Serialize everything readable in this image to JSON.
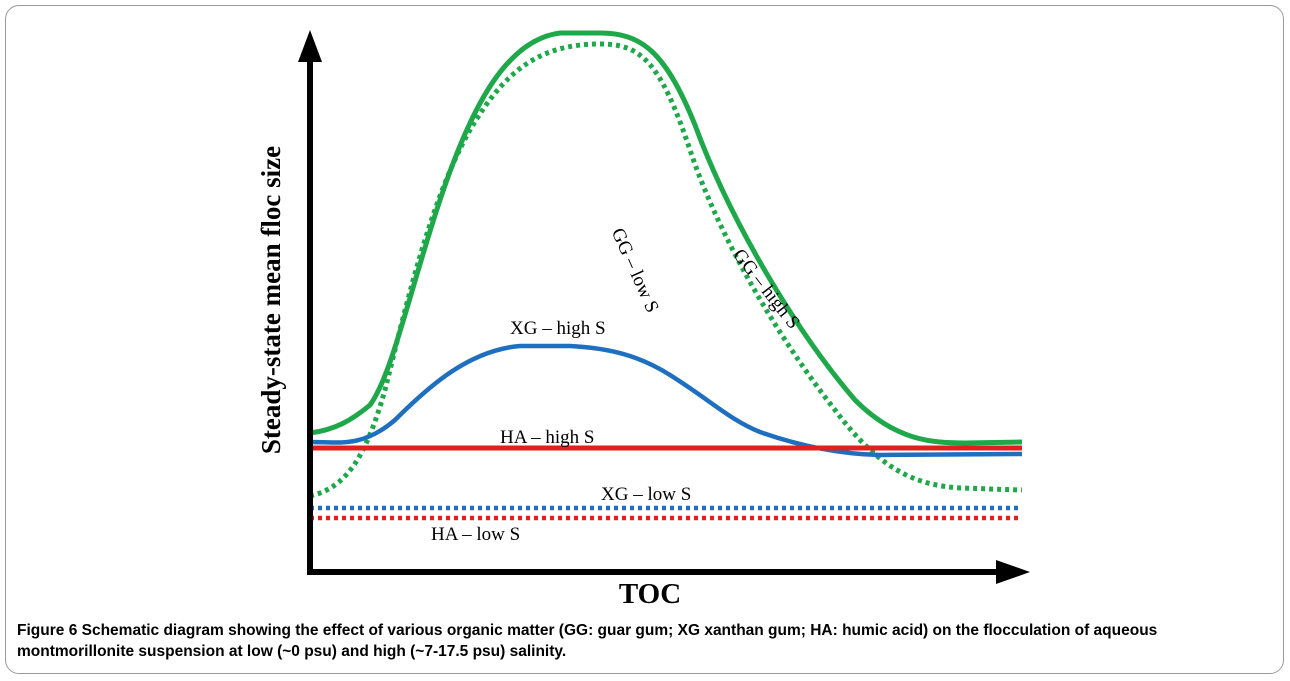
{
  "axes": {
    "y_title": "Steady-state mean floc size",
    "x_title": "TOC"
  },
  "curves": [
    {
      "id": "gg-high",
      "label": "GG – high S",
      "color": "#1fa84a",
      "style": "solid"
    },
    {
      "id": "gg-low",
      "label": "GG – low S",
      "color": "#1fa84a",
      "style": "dotted"
    },
    {
      "id": "xg-high",
      "label": "XG – high S",
      "color": "#1f6fc0",
      "style": "solid"
    },
    {
      "id": "ha-high",
      "label": "HA – high S",
      "color": "#e0201c",
      "style": "solid"
    },
    {
      "id": "xg-low",
      "label": "XG – low S",
      "color": "#1f6fc0",
      "style": "dotted"
    },
    {
      "id": "ha-low",
      "label": "HA – low S",
      "color": "#e0201c",
      "style": "dotted"
    }
  ],
  "caption": {
    "prefix": "Figure",
    "number": "6",
    "text": "Schematic diagram showing the effect of various organic matter (GG: guar gum; XG xanthan gum; HA: humic acid) on the flocculation of aqueous montmorillonite suspension at low (~0 psu) and high (~7-17.5 psu) salinity."
  }
}
